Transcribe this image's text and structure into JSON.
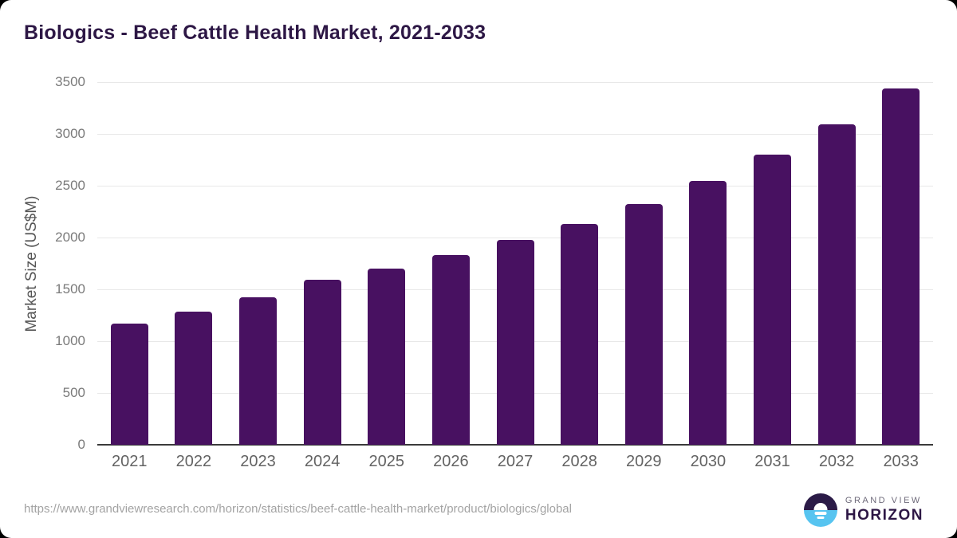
{
  "page": {
    "background_color": "#000000",
    "card_color": "#ffffff"
  },
  "title": "Biologics - Beef Cattle Health Market, 2021-2033",
  "chart_data": {
    "type": "bar",
    "title": "Biologics - Beef Cattle Health Market, 2021-2033",
    "categories": [
      "2021",
      "2022",
      "2023",
      "2024",
      "2025",
      "2026",
      "2027",
      "2028",
      "2029",
      "2030",
      "2031",
      "2032",
      "2033"
    ],
    "values": [
      1170,
      1285,
      1420,
      1590,
      1700,
      1830,
      1975,
      2130,
      2320,
      2545,
      2800,
      3090,
      3435
    ],
    "xlabel": "",
    "ylabel": "Market Size (US$M)",
    "ylim": [
      0,
      3500
    ],
    "yticks": [
      0,
      500,
      1000,
      1500,
      2000,
      2500,
      3000,
      3500
    ],
    "grid": "horizontal",
    "legend": "none",
    "bar_color": "#481161",
    "gridline_color": "#e8e8e8",
    "axis_line_color": "#3a3a3a",
    "tick_label_color": "#7a7a7a",
    "title_color": "#2d1745"
  },
  "footer": {
    "source_url": "https://www.grandviewresearch.com/horizon/statistics/beef-cattle-health-market/product/biologics/global",
    "logo": {
      "line1": "GRAND VIEW",
      "line2": "HORIZON",
      "mark_top_color": "#2b1b47",
      "mark_bottom_color": "#57c4f0"
    }
  }
}
